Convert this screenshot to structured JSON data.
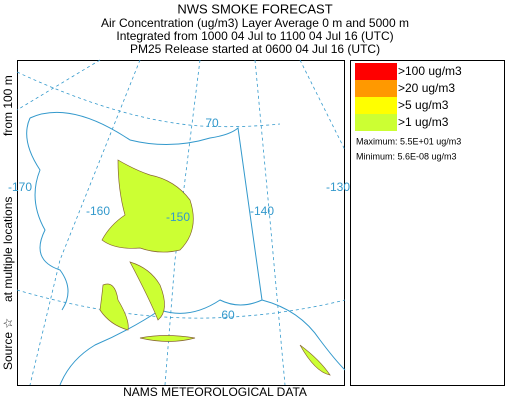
{
  "header": {
    "title": "NWS SMOKE FORECAST",
    "line1": "Air Concentration (ug/m3) Layer Average    0 m and  5000 m",
    "line2": "Integrated from 1000 04 Jul to 1100 04 Jul 16 (UTC)",
    "line3": "PM25 Release started at 0600 04 Jul 16 (UTC)"
  },
  "side_label": {
    "part1": "Source ☆",
    "part2": "at multiple locations",
    "part3": "from   100 m"
  },
  "footer": "NAMS METEOROLOGICAL DATA",
  "map": {
    "lon_labels": [
      "-170",
      "-160",
      "-150",
      "-140",
      "-130"
    ],
    "lat_labels": [
      "70",
      "60"
    ]
  },
  "legend": {
    "items": [
      {
        "label": ">100 ug/m3",
        "color": "#ff0000"
      },
      {
        "label": ">20 ug/m3",
        "color": "#ff9900"
      },
      {
        "label": ">5 ug/m3",
        "color": "#ffff00"
      },
      {
        "label": ">1 ug/m3",
        "color": "#ccff33"
      }
    ],
    "maximum": "Maximum: 5.5E+01 ug/m3",
    "minimum": "Minimum: 5.6E-08 ug/m3"
  }
}
